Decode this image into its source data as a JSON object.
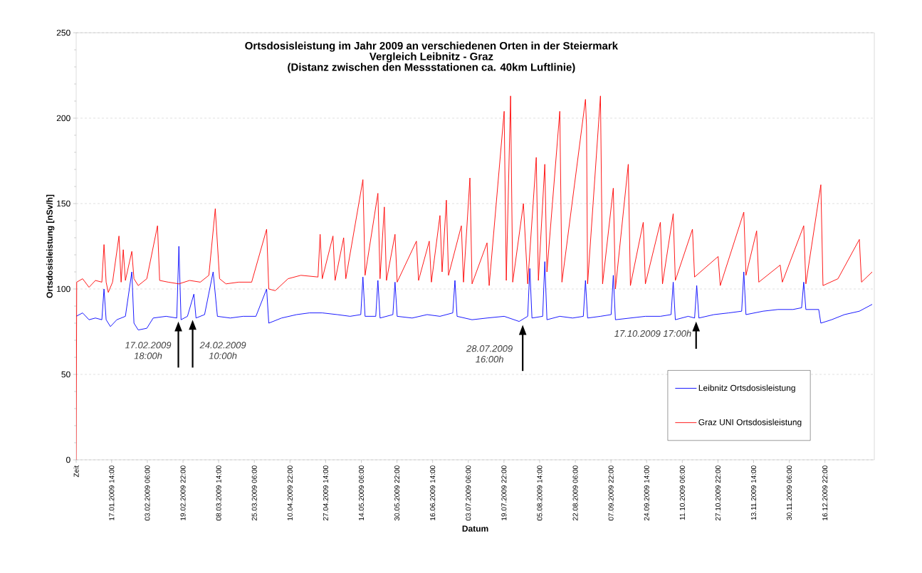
{
  "chart_data": {
    "type": "line",
    "title": "Ortsdosisleistung im Jahr 2009 an verschiedenen Orten in der Steiermark",
    "subtitle": "Vergleich Leibnitz - Graz",
    "xlabel": "Datum",
    "ylabel": "Ortsdosisleistung [nSv/h]",
    "annotations": [
      "(Distanz zwischen den Messstationen ca. 40km Luftlinie)",
      {
        "text": "17.02.2009 18:00h",
        "x": "2009-02-17T18:00",
        "y": 83
      },
      {
        "text": "24.02.2009 10:00h",
        "x": "2009-02-24T10:00",
        "y": 84
      },
      {
        "text": "28.07.2009 16:00h",
        "x": "2009-07-28T16:00",
        "y": 81
      },
      {
        "text": "17.10.2009 17:00h",
        "x": "2009-10-17T17:00",
        "y": 83
      }
    ],
    "series": [
      {
        "name": "Leibnitz Ortsdosisleistung",
        "color": "#0000ff",
        "x": [
          "2009-01-01",
          "2009-01-04",
          "2009-01-07",
          "2009-01-10",
          "2009-01-13",
          "2009-01-14",
          "2009-01-15",
          "2009-01-17",
          "2009-01-20",
          "2009-01-24",
          "2009-01-27",
          "2009-01-28",
          "2009-01-30",
          "2009-02-03",
          "2009-02-06",
          "2009-02-12",
          "2009-02-17",
          "2009-02-18",
          "2009-02-19",
          "2009-02-22",
          "2009-02-25",
          "2009-02-26",
          "2009-03-02",
          "2009-03-06",
          "2009-03-08",
          "2009-03-14",
          "2009-03-20",
          "2009-03-26",
          "2009-03-31",
          "2009-04-01",
          "2009-04-07",
          "2009-04-14",
          "2009-04-20",
          "2009-04-26",
          "2009-05-03",
          "2009-05-09",
          "2009-05-14",
          "2009-05-15",
          "2009-05-16",
          "2009-05-21",
          "2009-05-22",
          "2009-05-23",
          "2009-05-29",
          "2009-05-30",
          "2009-05-31",
          "2009-06-07",
          "2009-06-14",
          "2009-06-20",
          "2009-06-26",
          "2009-06-27",
          "2009-06-28",
          "2009-07-05",
          "2009-07-12",
          "2009-07-20",
          "2009-07-27",
          "2009-07-31",
          "2009-08-01",
          "2009-08-02",
          "2009-08-07",
          "2009-08-08",
          "2009-08-09",
          "2009-08-15",
          "2009-08-21",
          "2009-08-26",
          "2009-08-27",
          "2009-08-28",
          "2009-09-03",
          "2009-09-08",
          "2009-09-09",
          "2009-09-10",
          "2009-09-17",
          "2009-09-24",
          "2009-10-01",
          "2009-10-06",
          "2009-10-07",
          "2009-10-08",
          "2009-10-14",
          "2009-10-17",
          "2009-10-18",
          "2009-10-19",
          "2009-10-26",
          "2009-11-02",
          "2009-11-08",
          "2009-11-09",
          "2009-11-10",
          "2009-11-18",
          "2009-11-25",
          "2009-12-02",
          "2009-12-06",
          "2009-12-07",
          "2009-12-08",
          "2009-12-14",
          "2009-12-15",
          "2009-12-20",
          "2009-12-26",
          "2010-01-02",
          "2010-01-08"
        ],
        "values": [
          84,
          86,
          82,
          83,
          82,
          100,
          82,
          78,
          82,
          84,
          110,
          80,
          76,
          77,
          83,
          84,
          83,
          125,
          82,
          84,
          97,
          83,
          85,
          110,
          84,
          83,
          84,
          84,
          100,
          80,
          83,
          85,
          86,
          86,
          85,
          84,
          85,
          107,
          84,
          84,
          105,
          83,
          85,
          104,
          84,
          83,
          85,
          84,
          86,
          105,
          84,
          82,
          83,
          84,
          81,
          84,
          112,
          83,
          84,
          116,
          82,
          84,
          83,
          84,
          105,
          83,
          84,
          85,
          108,
          82,
          83,
          84,
          84,
          85,
          104,
          82,
          84,
          83,
          102,
          83,
          85,
          86,
          87,
          110,
          85,
          87,
          88,
          88,
          89,
          104,
          88,
          88,
          80,
          82,
          85,
          87,
          91
        ]
      },
      {
        "name": "Graz UNI Ortsdosisleistung",
        "color": "#ff0000",
        "x": [
          "2009-01-01T00:00",
          "2009-01-01T06:00",
          "2009-01-04",
          "2009-01-07",
          "2009-01-10",
          "2009-01-13",
          "2009-01-14",
          "2009-01-15",
          "2009-01-16",
          "2009-01-18",
          "2009-01-21",
          "2009-01-22",
          "2009-01-23",
          "2009-01-24",
          "2009-01-27",
          "2009-01-28",
          "2009-01-30",
          "2009-02-03",
          "2009-02-08",
          "2009-02-09",
          "2009-02-13",
          "2009-02-18",
          "2009-02-23",
          "2009-02-28",
          "2009-03-04",
          "2009-03-07",
          "2009-03-09",
          "2009-03-12",
          "2009-03-18",
          "2009-03-24",
          "2009-03-31",
          "2009-04-01",
          "2009-04-04",
          "2009-04-10",
          "2009-04-16",
          "2009-04-24",
          "2009-04-25",
          "2009-04-26",
          "2009-05-01",
          "2009-05-02",
          "2009-05-06",
          "2009-05-07",
          "2009-05-15",
          "2009-05-16",
          "2009-05-22",
          "2009-05-23",
          "2009-05-25",
          "2009-05-26",
          "2009-05-30",
          "2009-05-31",
          "2009-06-09",
          "2009-06-10",
          "2009-06-15",
          "2009-06-16",
          "2009-06-20",
          "2009-06-21",
          "2009-06-23",
          "2009-06-24",
          "2009-06-30",
          "2009-07-01",
          "2009-07-04",
          "2009-07-05",
          "2009-07-12",
          "2009-07-13",
          "2009-07-20",
          "2009-07-21",
          "2009-07-23",
          "2009-07-24",
          "2009-07-29",
          "2009-07-31",
          "2009-08-04",
          "2009-08-05",
          "2009-08-08",
          "2009-08-09",
          "2009-08-15",
          "2009-08-16",
          "2009-08-27T00:00",
          "2009-08-27T12:00",
          "2009-08-28",
          "2009-09-03",
          "2009-09-04",
          "2009-09-09",
          "2009-09-10",
          "2009-09-16",
          "2009-09-17",
          "2009-09-23",
          "2009-09-24",
          "2009-10-01",
          "2009-10-02",
          "2009-10-07",
          "2009-10-08",
          "2009-10-16",
          "2009-10-17",
          "2009-10-28",
          "2009-10-29",
          "2009-11-09",
          "2009-11-10",
          "2009-11-15",
          "2009-11-16",
          "2009-11-26",
          "2009-11-27",
          "2009-12-07",
          "2009-12-08",
          "2009-12-15",
          "2009-12-16",
          "2009-12-23",
          "2010-01-02",
          "2010-01-03",
          "2010-01-08"
        ],
        "values": [
          0,
          104,
          106,
          101,
          105,
          104,
          126,
          104,
          98,
          104,
          131,
          104,
          123,
          105,
          122,
          106,
          102,
          106,
          137,
          105,
          104,
          103,
          105,
          104,
          108,
          147,
          106,
          103,
          104,
          104,
          135,
          100,
          99,
          106,
          108,
          107,
          132,
          106,
          131,
          105,
          130,
          106,
          164,
          108,
          156,
          106,
          148,
          105,
          132,
          104,
          128,
          105,
          128,
          104,
          143,
          110,
          152,
          108,
          137,
          104,
          165,
          103,
          127,
          102,
          204,
          105,
          213,
          104,
          150,
          103,
          177,
          105,
          173,
          110,
          204,
          104,
          211,
          195,
          103,
          213,
          103,
          159,
          100,
          173,
          102,
          139,
          103,
          139,
          103,
          144,
          105,
          135,
          107,
          119,
          102,
          145,
          108,
          134,
          104,
          114,
          104,
          137,
          103,
          161,
          102,
          106,
          129,
          104,
          110
        ]
      }
    ],
    "xlim": [
      "2009-01-01T00:00",
      "2010-01-09"
    ],
    "xticks": [
      {
        "value": "2009-01-01T00:00",
        "label": "Zeit"
      },
      {
        "value": "2009-01-17T14:00",
        "label": "17.01.2009 14:00"
      },
      {
        "value": "2009-02-03T06:00",
        "label": "03.02.2009 06:00"
      },
      {
        "value": "2009-02-19T22:00",
        "label": "19.02.2009 22:00"
      },
      {
        "value": "2009-03-08T14:00",
        "label": "08.03.2009 14:00"
      },
      {
        "value": "2009-03-25T06:00",
        "label": "25.03.2009 06:00"
      },
      {
        "value": "2009-04-10T22:00",
        "label": "10.04.2009 22:00"
      },
      {
        "value": "2009-04-27T14:00",
        "label": "27.04.2009 14:00"
      },
      {
        "value": "2009-05-14T06:00",
        "label": "14.05.2009 06:00"
      },
      {
        "value": "2009-05-30T22:00",
        "label": "30.05.2009 22:00"
      },
      {
        "value": "2009-06-16T14:00",
        "label": "16.06.2009 14:00"
      },
      {
        "value": "2009-07-03T06:00",
        "label": "03.07.2009 06:00"
      },
      {
        "value": "2009-07-19T22:00",
        "label": "19.07.2009 22:00"
      },
      {
        "value": "2009-08-05T14:00",
        "label": "05.08.2009 14:00"
      },
      {
        "value": "2009-08-22T06:00",
        "label": "22.08.2009 06:00"
      },
      {
        "value": "2009-09-07T22:00",
        "label": "07.09.2009 22:00"
      },
      {
        "value": "2009-09-24T14:00",
        "label": "24.09.2009 14:00"
      },
      {
        "value": "2009-10-11T06:00",
        "label": "11.10.2009 06:00"
      },
      {
        "value": "2009-10-27T22:00",
        "label": "27.10.2009 22:00"
      },
      {
        "value": "2009-11-13T14:00",
        "label": "13.11.2009 14:00"
      },
      {
        "value": "2009-11-30T06:00",
        "label": "30.11.2009 06:00"
      },
      {
        "value": "2009-12-16T22:00",
        "label": "16.12.2009 22:00"
      }
    ],
    "ylim": [
      0,
      250
    ],
    "yticks": [
      0,
      50,
      100,
      150,
      200,
      250
    ],
    "grid": "y",
    "legend": "bottom right",
    "marker": "none",
    "line_style": "solid"
  }
}
